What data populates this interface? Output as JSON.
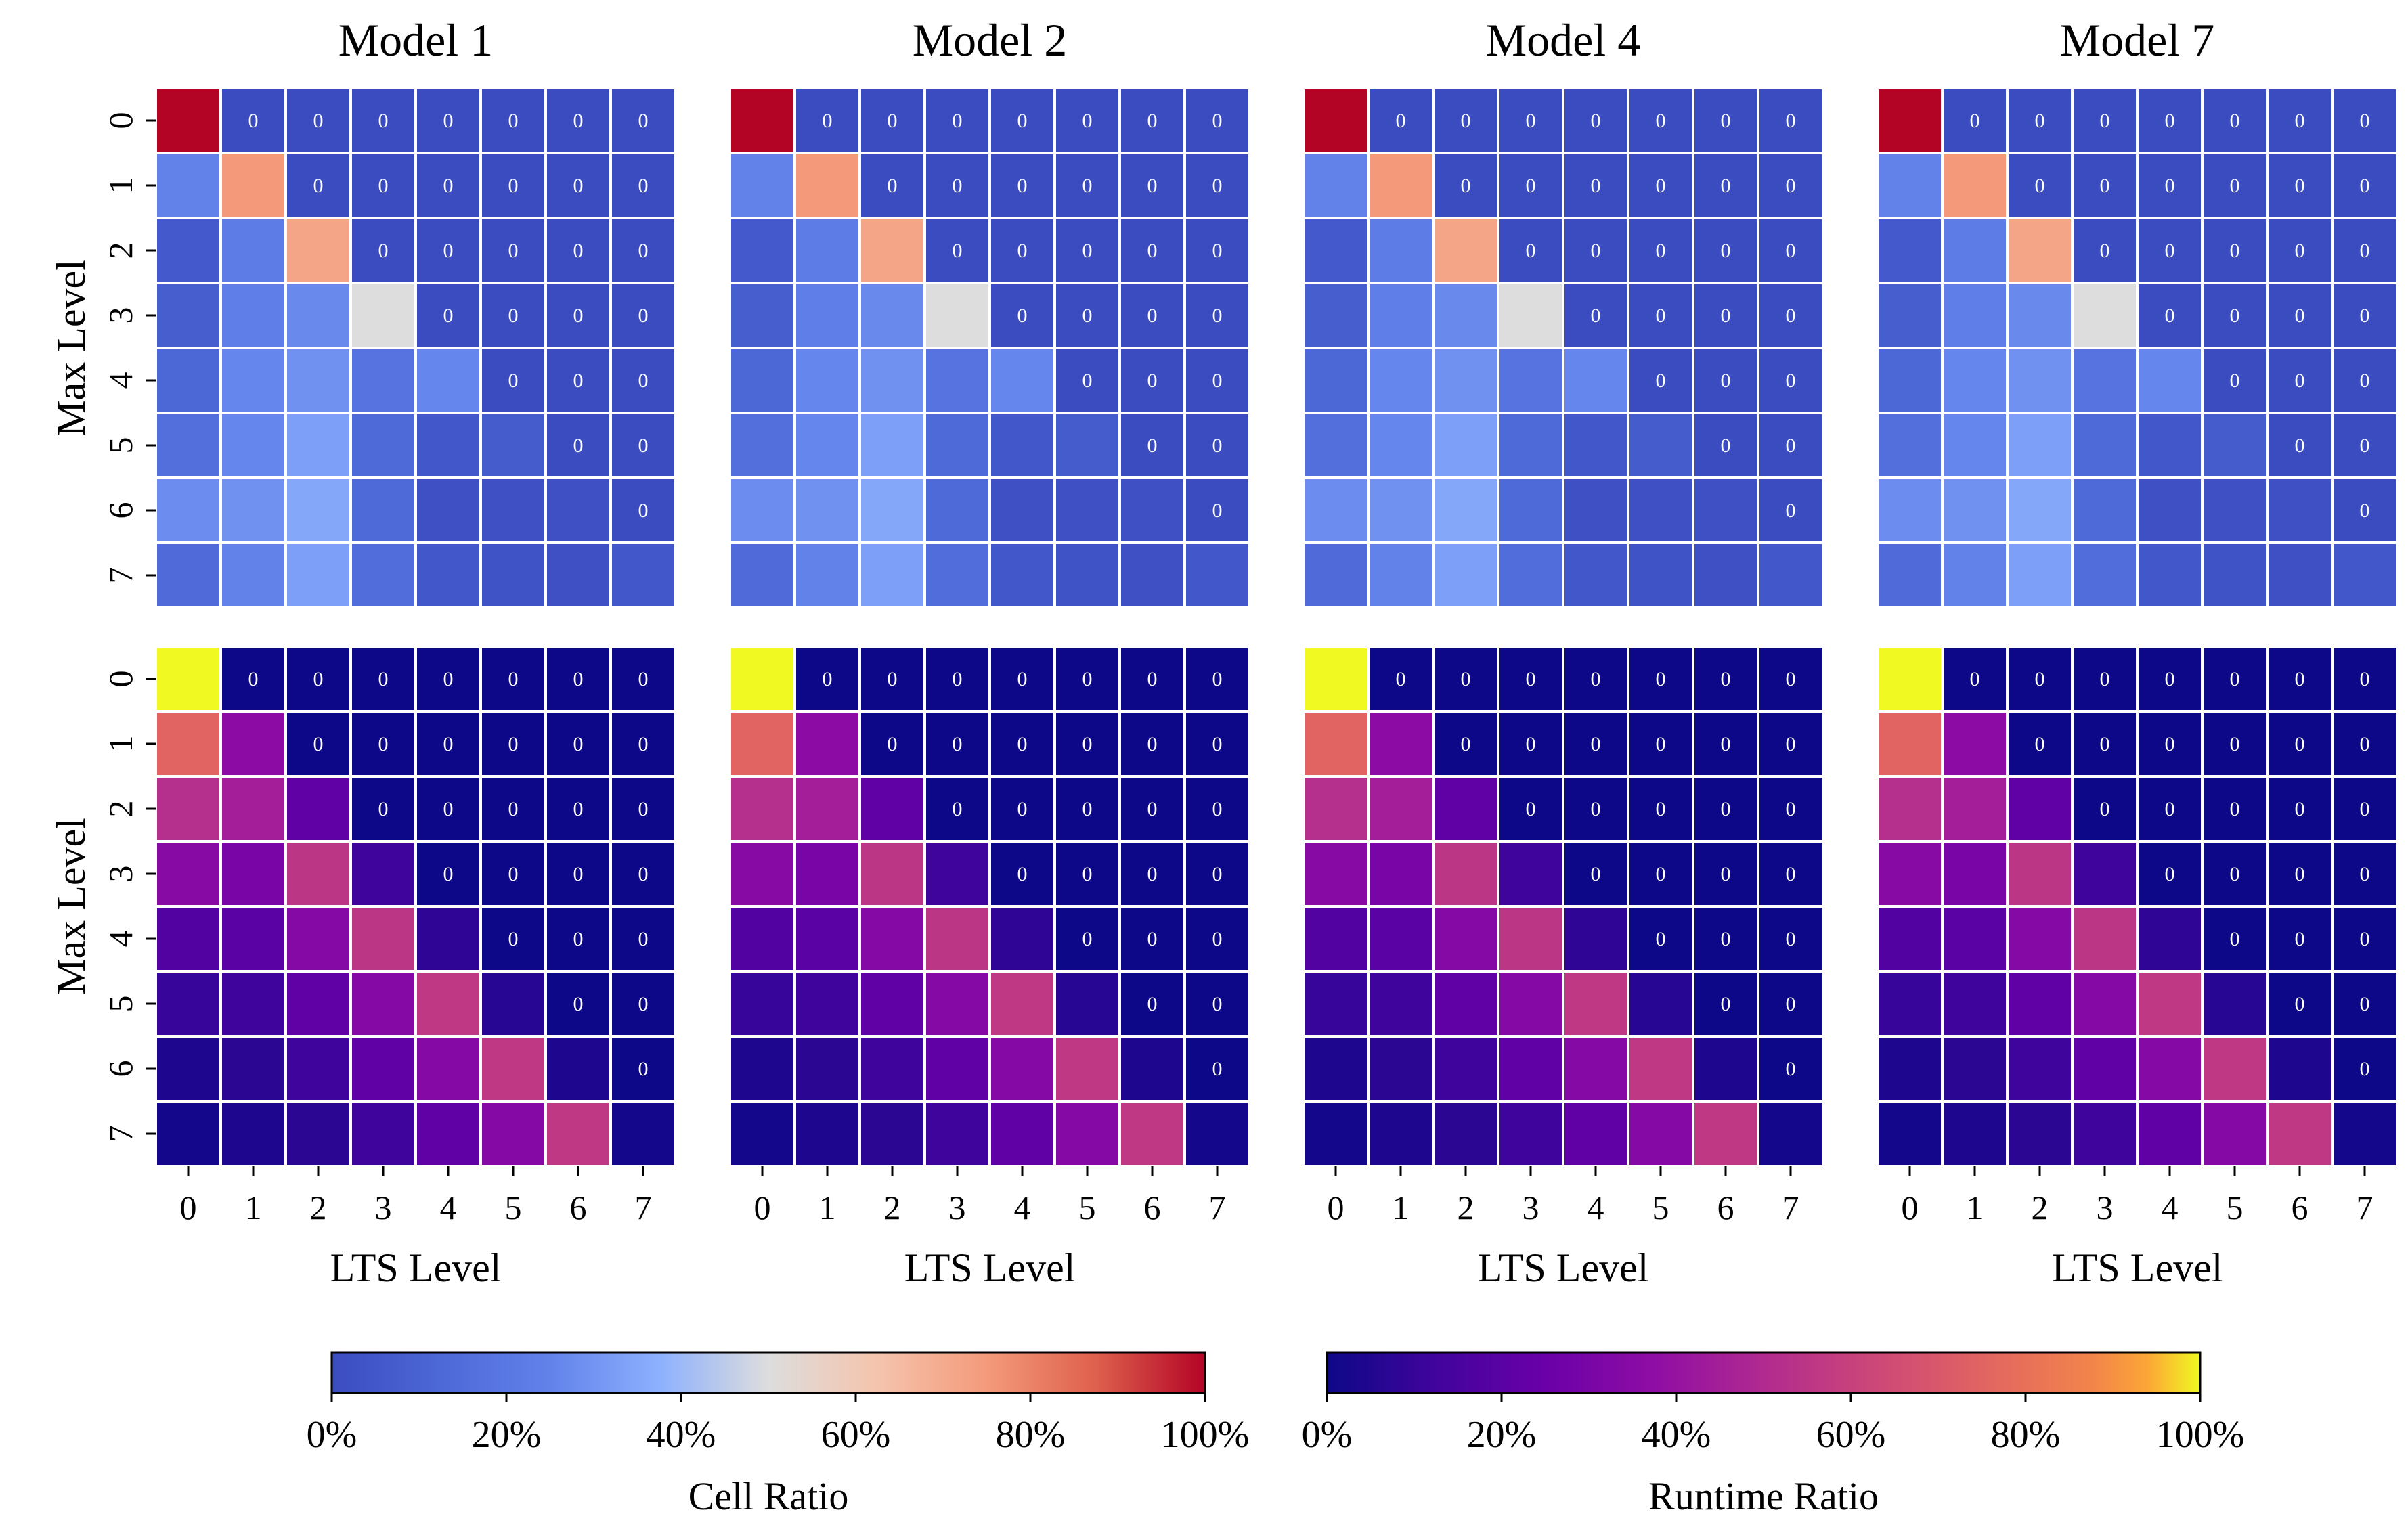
{
  "figure": {
    "cell_colormap": "coolwarm",
    "runtime_colormap": "plasma",
    "zero_annotation": "0",
    "colorbars": [
      {
        "name": "cell-ratio",
        "label": "Cell Ratio",
        "cmap": "coolwarm",
        "ticks": [
          "0%",
          "20%",
          "40%",
          "60%",
          "80%",
          "100%"
        ]
      },
      {
        "name": "runtime-ratio",
        "label": "Runtime Ratio",
        "cmap": "plasma",
        "ticks": [
          "0%",
          "20%",
          "40%",
          "60%",
          "80%",
          "100%"
        ]
      }
    ]
  },
  "chart_data": [
    {
      "type": "heatmap",
      "title": "Model 1",
      "metric": "Cell Ratio",
      "xlabel": "LTS Level",
      "ylabel": "Max Level",
      "x_ticks": [
        "0",
        "1",
        "2",
        "3",
        "4",
        "5",
        "6",
        "7"
      ],
      "y_ticks": [
        "0",
        "1",
        "2",
        "3",
        "4",
        "5",
        "6",
        "7"
      ],
      "vmin": 0,
      "vmax": 1,
      "values": [
        [
          1.0,
          0,
          0,
          0,
          0,
          0,
          0,
          0
        ],
        [
          0.25,
          0.75,
          0,
          0,
          0,
          0,
          0,
          0
        ],
        [
          0.06,
          0.22,
          0.72,
          0,
          0,
          0,
          0,
          0
        ],
        [
          0.08,
          0.23,
          0.27,
          0.5,
          0,
          0,
          0,
          0
        ],
        [
          0.12,
          0.26,
          0.29,
          0.18,
          0.26,
          0,
          0,
          0
        ],
        [
          0.16,
          0.26,
          0.33,
          0.13,
          0.05,
          0.07,
          0,
          0
        ],
        [
          0.28,
          0.29,
          0.35,
          0.13,
          0.02,
          0.02,
          0.02,
          0
        ],
        [
          0.14,
          0.25,
          0.33,
          0.15,
          0.05,
          0.03,
          0.02,
          0.05
        ]
      ]
    },
    {
      "type": "heatmap",
      "title": "Model 2",
      "metric": "Cell Ratio",
      "xlabel": "LTS Level",
      "ylabel": "Max Level",
      "x_ticks": [
        "0",
        "1",
        "2",
        "3",
        "4",
        "5",
        "6",
        "7"
      ],
      "y_ticks": [
        "0",
        "1",
        "2",
        "3",
        "4",
        "5",
        "6",
        "7"
      ],
      "vmin": 0,
      "vmax": 1,
      "values": [
        [
          1.0,
          0,
          0,
          0,
          0,
          0,
          0,
          0
        ],
        [
          0.25,
          0.75,
          0,
          0,
          0,
          0,
          0,
          0
        ],
        [
          0.06,
          0.22,
          0.72,
          0,
          0,
          0,
          0,
          0
        ],
        [
          0.08,
          0.23,
          0.27,
          0.5,
          0,
          0,
          0,
          0
        ],
        [
          0.12,
          0.26,
          0.29,
          0.18,
          0.26,
          0,
          0,
          0
        ],
        [
          0.16,
          0.26,
          0.33,
          0.13,
          0.05,
          0.07,
          0,
          0
        ],
        [
          0.28,
          0.29,
          0.35,
          0.13,
          0.02,
          0.02,
          0.02,
          0
        ],
        [
          0.14,
          0.25,
          0.33,
          0.15,
          0.05,
          0.03,
          0.02,
          0.05
        ]
      ]
    },
    {
      "type": "heatmap",
      "title": "Model 4",
      "metric": "Cell Ratio",
      "xlabel": "LTS Level",
      "ylabel": "Max Level",
      "x_ticks": [
        "0",
        "1",
        "2",
        "3",
        "4",
        "5",
        "6",
        "7"
      ],
      "y_ticks": [
        "0",
        "1",
        "2",
        "3",
        "4",
        "5",
        "6",
        "7"
      ],
      "vmin": 0,
      "vmax": 1,
      "values": [
        [
          1.0,
          0,
          0,
          0,
          0,
          0,
          0,
          0
        ],
        [
          0.25,
          0.75,
          0,
          0,
          0,
          0,
          0,
          0
        ],
        [
          0.06,
          0.22,
          0.72,
          0,
          0,
          0,
          0,
          0
        ],
        [
          0.08,
          0.23,
          0.27,
          0.5,
          0,
          0,
          0,
          0
        ],
        [
          0.12,
          0.26,
          0.29,
          0.18,
          0.26,
          0,
          0,
          0
        ],
        [
          0.16,
          0.26,
          0.33,
          0.13,
          0.05,
          0.07,
          0,
          0
        ],
        [
          0.28,
          0.29,
          0.35,
          0.13,
          0.02,
          0.02,
          0.02,
          0
        ],
        [
          0.14,
          0.25,
          0.33,
          0.15,
          0.05,
          0.03,
          0.02,
          0.05
        ]
      ]
    },
    {
      "type": "heatmap",
      "title": "Model 7",
      "metric": "Cell Ratio",
      "xlabel": "LTS Level",
      "ylabel": "Max Level",
      "x_ticks": [
        "0",
        "1",
        "2",
        "3",
        "4",
        "5",
        "6",
        "7"
      ],
      "y_ticks": [
        "0",
        "1",
        "2",
        "3",
        "4",
        "5",
        "6",
        "7"
      ],
      "vmin": 0,
      "vmax": 1,
      "values": [
        [
          1.0,
          0,
          0,
          0,
          0,
          0,
          0,
          0
        ],
        [
          0.25,
          0.75,
          0,
          0,
          0,
          0,
          0,
          0
        ],
        [
          0.06,
          0.22,
          0.72,
          0,
          0,
          0,
          0,
          0
        ],
        [
          0.08,
          0.23,
          0.27,
          0.5,
          0,
          0,
          0,
          0
        ],
        [
          0.12,
          0.26,
          0.29,
          0.18,
          0.26,
          0,
          0,
          0
        ],
        [
          0.16,
          0.26,
          0.33,
          0.13,
          0.05,
          0.07,
          0,
          0
        ],
        [
          0.28,
          0.29,
          0.35,
          0.13,
          0.02,
          0.02,
          0.02,
          0
        ],
        [
          0.14,
          0.25,
          0.33,
          0.15,
          0.05,
          0.03,
          0.02,
          0.05
        ]
      ]
    },
    {
      "type": "heatmap",
      "title": "Model 1",
      "metric": "Runtime Ratio",
      "xlabel": "LTS Level",
      "ylabel": "Max Level",
      "x_ticks": [
        "0",
        "1",
        "2",
        "3",
        "4",
        "5",
        "6",
        "7"
      ],
      "y_ticks": [
        "0",
        "1",
        "2",
        "3",
        "4",
        "5",
        "6",
        "7"
      ],
      "vmin": 0,
      "vmax": 1,
      "values": [
        [
          1.0,
          0,
          0,
          0,
          0,
          0,
          0,
          0
        ],
        [
          0.75,
          0.36,
          0,
          0,
          0,
          0,
          0,
          0
        ],
        [
          0.52,
          0.45,
          0.22,
          0,
          0,
          0,
          0,
          0
        ],
        [
          0.35,
          0.3,
          0.55,
          0.12,
          0,
          0,
          0,
          0
        ],
        [
          0.18,
          0.2,
          0.34,
          0.55,
          0.08,
          0,
          0,
          0
        ],
        [
          0.1,
          0.12,
          0.22,
          0.34,
          0.56,
          0.06,
          0,
          0
        ],
        [
          0.04,
          0.07,
          0.12,
          0.22,
          0.34,
          0.56,
          0.04,
          0
        ],
        [
          0.02,
          0.04,
          0.07,
          0.12,
          0.22,
          0.34,
          0.56,
          0.02
        ]
      ]
    },
    {
      "type": "heatmap",
      "title": "Model 2",
      "metric": "Runtime Ratio",
      "xlabel": "LTS Level",
      "ylabel": "Max Level",
      "x_ticks": [
        "0",
        "1",
        "2",
        "3",
        "4",
        "5",
        "6",
        "7"
      ],
      "y_ticks": [
        "0",
        "1",
        "2",
        "3",
        "4",
        "5",
        "6",
        "7"
      ],
      "vmin": 0,
      "vmax": 1,
      "values": [
        [
          1.0,
          0,
          0,
          0,
          0,
          0,
          0,
          0
        ],
        [
          0.75,
          0.36,
          0,
          0,
          0,
          0,
          0,
          0
        ],
        [
          0.52,
          0.45,
          0.22,
          0,
          0,
          0,
          0,
          0
        ],
        [
          0.35,
          0.3,
          0.55,
          0.12,
          0,
          0,
          0,
          0
        ],
        [
          0.18,
          0.2,
          0.34,
          0.55,
          0.08,
          0,
          0,
          0
        ],
        [
          0.1,
          0.12,
          0.22,
          0.34,
          0.56,
          0.06,
          0,
          0
        ],
        [
          0.04,
          0.07,
          0.12,
          0.22,
          0.34,
          0.56,
          0.04,
          0
        ],
        [
          0.02,
          0.04,
          0.07,
          0.12,
          0.22,
          0.34,
          0.56,
          0.02
        ]
      ]
    },
    {
      "type": "heatmap",
      "title": "Model 4",
      "metric": "Runtime Ratio",
      "xlabel": "LTS Level",
      "ylabel": "Max Level",
      "x_ticks": [
        "0",
        "1",
        "2",
        "3",
        "4",
        "5",
        "6",
        "7"
      ],
      "y_ticks": [
        "0",
        "1",
        "2",
        "3",
        "4",
        "5",
        "6",
        "7"
      ],
      "vmin": 0,
      "vmax": 1,
      "values": [
        [
          1.0,
          0,
          0,
          0,
          0,
          0,
          0,
          0
        ],
        [
          0.75,
          0.36,
          0,
          0,
          0,
          0,
          0,
          0
        ],
        [
          0.52,
          0.45,
          0.22,
          0,
          0,
          0,
          0,
          0
        ],
        [
          0.35,
          0.3,
          0.55,
          0.12,
          0,
          0,
          0,
          0
        ],
        [
          0.18,
          0.2,
          0.34,
          0.55,
          0.08,
          0,
          0,
          0
        ],
        [
          0.1,
          0.12,
          0.22,
          0.34,
          0.56,
          0.06,
          0,
          0
        ],
        [
          0.04,
          0.07,
          0.12,
          0.22,
          0.34,
          0.56,
          0.04,
          0
        ],
        [
          0.02,
          0.04,
          0.07,
          0.12,
          0.22,
          0.34,
          0.56,
          0.02
        ]
      ]
    },
    {
      "type": "heatmap",
      "title": "Model 7",
      "metric": "Runtime Ratio",
      "xlabel": "LTS Level",
      "ylabel": "Max Level",
      "x_ticks": [
        "0",
        "1",
        "2",
        "3",
        "4",
        "5",
        "6",
        "7"
      ],
      "y_ticks": [
        "0",
        "1",
        "2",
        "3",
        "4",
        "5",
        "6",
        "7"
      ],
      "vmin": 0,
      "vmax": 1,
      "values": [
        [
          1.0,
          0,
          0,
          0,
          0,
          0,
          0,
          0
        ],
        [
          0.75,
          0.36,
          0,
          0,
          0,
          0,
          0,
          0
        ],
        [
          0.52,
          0.45,
          0.22,
          0,
          0,
          0,
          0,
          0
        ],
        [
          0.35,
          0.3,
          0.55,
          0.12,
          0,
          0,
          0,
          0
        ],
        [
          0.18,
          0.2,
          0.34,
          0.55,
          0.08,
          0,
          0,
          0
        ],
        [
          0.1,
          0.12,
          0.22,
          0.34,
          0.56,
          0.06,
          0,
          0
        ],
        [
          0.04,
          0.07,
          0.12,
          0.22,
          0.34,
          0.56,
          0.04,
          0
        ],
        [
          0.02,
          0.04,
          0.07,
          0.12,
          0.22,
          0.34,
          0.56,
          0.02
        ]
      ]
    }
  ]
}
